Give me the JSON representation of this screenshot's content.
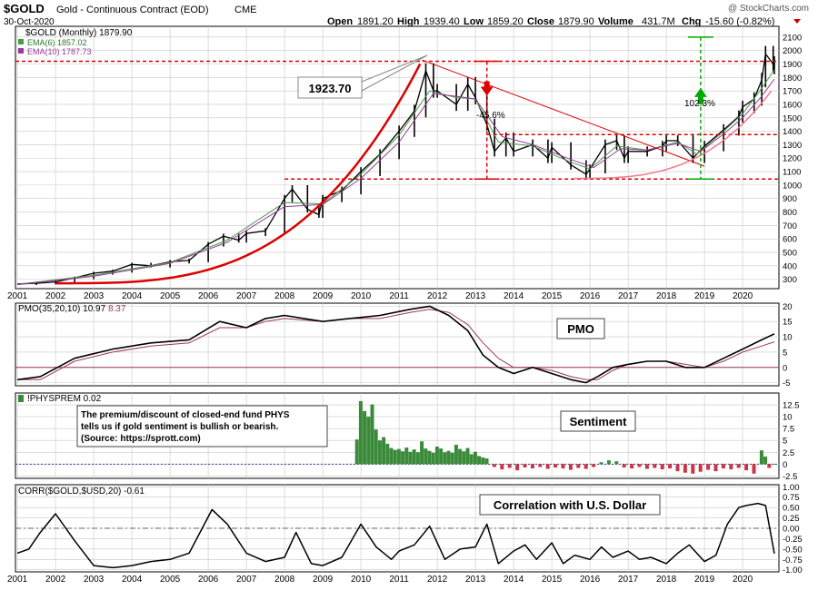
{
  "header": {
    "symbol": "$GOLD",
    "description": "Gold - Continuous Contract (EOD)",
    "exchange": "CME",
    "watermark": "@ StockCharts.com",
    "date": "30-Oct-2020",
    "ohlc": {
      "open_label": "Open",
      "open": "1891.20",
      "high_label": "High",
      "high": "1939.40",
      "low_label": "Low",
      "low": "1859.20",
      "close_label": "Close",
      "close": "1879.90",
      "volume_label": "Volume",
      "volume": "431.7M",
      "chg_label": "Chg",
      "chg": "-15.60 (-0.82%)"
    }
  },
  "colors": {
    "price_bar": "#000000",
    "ema6": "#4a9a4a",
    "ema10": "#9a3a9a",
    "red": "#dd0000",
    "green": "#00aa00",
    "positive_hist": "#3a8a3a",
    "negative_hist": "#cc3344",
    "grid": "#c8c8c8",
    "fill": "#ffffff"
  },
  "chart_data": [
    {
      "type": "line",
      "legend": [
        "$GOLD (Monthly) 1879.90",
        "EMA(6) 1857.02",
        "EMA(10) 1787.73"
      ],
      "ylim": [
        230,
        2180
      ],
      "yticks": [
        300,
        400,
        500,
        600,
        700,
        800,
        900,
        1000,
        1100,
        1200,
        1300,
        1400,
        1500,
        1600,
        1700,
        1800,
        1900,
        2000,
        2100
      ],
      "x_labels": [
        "2001",
        "2002",
        "2003",
        "2004",
        "2005",
        "2006",
        "2007",
        "2008",
        "2009",
        "2010",
        "2011",
        "2012",
        "2013",
        "2014",
        "2015",
        "2016",
        "2017",
        "2018",
        "2019",
        "2020"
      ],
      "series": [
        {
          "name": "$GOLD (Monthly)",
          "x": [
            2001.0,
            2001.5,
            2002.0,
            2002.5,
            2003.0,
            2003.5,
            2004.0,
            2004.5,
            2005.0,
            2005.5,
            2006.0,
            2006.4,
            2006.8,
            2007.0,
            2007.5,
            2008.0,
            2008.2,
            2008.6,
            2008.9,
            2009.0,
            2009.5,
            2010.0,
            2010.5,
            2011.0,
            2011.4,
            2011.7,
            2011.9,
            2012.0,
            2012.5,
            2012.8,
            2013.0,
            2013.3,
            2013.5,
            2013.8,
            2014.0,
            2014.5,
            2014.9,
            2015.0,
            2015.5,
            2015.9,
            2016.0,
            2016.4,
            2016.7,
            2016.9,
            2017.0,
            2017.5,
            2017.9,
            2018.0,
            2018.3,
            2018.7,
            2019.0,
            2019.5,
            2019.9,
            2020.0,
            2020.3,
            2020.5,
            2020.6,
            2020.8,
            2020.83
          ],
          "values": [
            265,
            270,
            280,
            310,
            345,
            360,
            410,
            400,
            430,
            440,
            560,
            620,
            590,
            640,
            660,
            900,
            970,
            820,
            780,
            900,
            960,
            1100,
            1230,
            1400,
            1550,
            1850,
            1700,
            1700,
            1600,
            1750,
            1650,
            1450,
            1250,
            1350,
            1250,
            1300,
            1200,
            1280,
            1150,
            1080,
            1120,
            1300,
            1330,
            1200,
            1250,
            1250,
            1290,
            1330,
            1330,
            1200,
            1290,
            1410,
            1510,
            1580,
            1640,
            1780,
            1975,
            1900,
            1879.9
          ]
        },
        {
          "name": "EMA(6)",
          "x": [
            2001.0,
            2003.0,
            2005.0,
            2006.5,
            2008.0,
            2009.0,
            2010.0,
            2011.0,
            2011.8,
            2012.5,
            2013.0,
            2013.6,
            2014.5,
            2015.5,
            2016.0,
            2016.7,
            2017.5,
            2018.3,
            2018.8,
            2019.5,
            2020.0,
            2020.5,
            2020.83
          ],
          "values": [
            262,
            330,
            425,
            590,
            870,
            860,
            1080,
            1370,
            1700,
            1650,
            1640,
            1320,
            1290,
            1170,
            1120,
            1290,
            1260,
            1320,
            1230,
            1400,
            1530,
            1720,
            1857.02
          ]
        },
        {
          "name": "EMA(10)",
          "x": [
            2001.0,
            2003.0,
            2005.0,
            2006.5,
            2008.0,
            2009.0,
            2010.0,
            2011.0,
            2011.9,
            2012.5,
            2013.0,
            2013.7,
            2014.5,
            2015.5,
            2016.1,
            2016.8,
            2017.5,
            2018.3,
            2018.9,
            2019.5,
            2020.0,
            2020.5,
            2020.83
          ],
          "values": [
            260,
            322,
            418,
            575,
            840,
            855,
            1050,
            1320,
            1680,
            1660,
            1640,
            1360,
            1300,
            1190,
            1130,
            1270,
            1260,
            1310,
            1250,
            1380,
            1500,
            1660,
            1787.73
          ]
        }
      ],
      "annotations": {
        "peak_value": "1923.70",
        "decline_pct": "-45.6%",
        "gain_pct": "102.3%",
        "resistance_level": 1920,
        "support_level": 1045,
        "mid_level": 1375
      }
    },
    {
      "type": "line",
      "legend": [
        "PMO(35,20,10) 10.97",
        "8.37"
      ],
      "label": "PMO",
      "ylim": [
        -6,
        21
      ],
      "yticks": [
        -5,
        0,
        5,
        10,
        15,
        20
      ],
      "series": [
        {
          "name": "PMO(35,20,10)",
          "x": [
            2001.0,
            2001.6,
            2002.5,
            2003.5,
            2004.5,
            2005.5,
            2006.3,
            2007.0,
            2007.5,
            2008.0,
            2009.0,
            2009.7,
            2010.5,
            2011.3,
            2011.8,
            2012.3,
            2012.8,
            2013.2,
            2013.6,
            2014.0,
            2014.5,
            2015.0,
            2015.5,
            2015.9,
            2016.2,
            2016.6,
            2017.0,
            2017.5,
            2018.0,
            2018.5,
            2019.0,
            2019.5,
            2020.0,
            2020.5,
            2020.83
          ],
          "values": [
            -4,
            -3,
            3,
            6,
            8,
            9,
            15,
            13,
            16,
            17,
            15,
            16,
            17,
            19,
            20,
            17,
            12,
            4,
            0,
            -2,
            0,
            -2,
            -4,
            -5,
            -3,
            0,
            1,
            2,
            2,
            0,
            0,
            3,
            6,
            9,
            10.97
          ]
        },
        {
          "name": "Signal",
          "x": [
            2001.0,
            2001.6,
            2002.5,
            2003.5,
            2004.5,
            2005.5,
            2006.3,
            2007.0,
            2007.5,
            2008.0,
            2009.0,
            2009.7,
            2010.5,
            2011.3,
            2011.8,
            2012.3,
            2012.8,
            2013.2,
            2013.6,
            2014.0,
            2014.5,
            2015.0,
            2015.5,
            2015.9,
            2016.2,
            2016.6,
            2017.0,
            2017.5,
            2018.0,
            2018.5,
            2019.0,
            2019.5,
            2020.0,
            2020.5,
            2020.83
          ],
          "values": [
            -4,
            -4,
            2,
            5,
            7,
            8,
            13,
            13,
            15,
            16,
            15,
            16,
            16,
            18,
            19,
            18,
            14,
            8,
            3,
            0,
            0,
            -1,
            -3,
            -4,
            -4,
            -1,
            1,
            2,
            2,
            1,
            0,
            2,
            5,
            7,
            8.37
          ]
        }
      ]
    },
    {
      "type": "bar",
      "legend": [
        "!PHYSPREM 0.02"
      ],
      "label": "Sentiment",
      "note": [
        "The premium/discount of closed-end fund PHYS",
        "tells us if gold sentiment is bullish or bearish.",
        "(Source: https://sprott.com)"
      ],
      "ylim": [
        -3,
        15
      ],
      "yticks": [
        -2.5,
        0,
        2.5,
        5,
        7.5,
        10,
        12.5
      ],
      "x": [
        2009.9,
        2010.0,
        2010.1,
        2010.2,
        2010.3,
        2010.4,
        2010.5,
        2010.6,
        2010.7,
        2010.8,
        2010.9,
        2011.0,
        2011.1,
        2011.2,
        2011.3,
        2011.4,
        2011.5,
        2011.6,
        2011.7,
        2011.8,
        2011.9,
        2012.0,
        2012.1,
        2012.2,
        2012.3,
        2012.4,
        2012.5,
        2012.6,
        2012.7,
        2012.8,
        2012.9,
        2013.0,
        2013.1,
        2013.2,
        2013.3,
        2013.5,
        2013.7,
        2013.9,
        2014.1,
        2014.3,
        2014.5,
        2014.7,
        2014.9,
        2015.1,
        2015.3,
        2015.5,
        2015.7,
        2015.9,
        2016.1,
        2016.3,
        2016.5,
        2016.7,
        2016.9,
        2017.1,
        2017.3,
        2017.5,
        2017.7,
        2017.9,
        2018.1,
        2018.3,
        2018.5,
        2018.7,
        2018.9,
        2019.1,
        2019.3,
        2019.5,
        2019.7,
        2019.9,
        2020.1,
        2020.3,
        2020.5,
        2020.6,
        2020.7,
        2020.83
      ],
      "values": [
        5.2,
        13.3,
        11.2,
        10.0,
        12.6,
        7.3,
        5.0,
        5.7,
        4.3,
        3.4,
        3.0,
        3.2,
        2.7,
        3.5,
        2.6,
        3.1,
        2.5,
        4.8,
        3.3,
        2.8,
        2.4,
        3.7,
        3.3,
        2.5,
        2.8,
        2.4,
        4.1,
        3.2,
        2.7,
        3.4,
        2.1,
        2.6,
        1.7,
        1.4,
        1.2,
        -0.6,
        -1.1,
        -0.8,
        -1.3,
        -0.7,
        -0.9,
        -0.6,
        -1.0,
        -0.7,
        -0.9,
        -1.2,
        -0.8,
        -1.0,
        -0.6,
        0.4,
        0.8,
        0.6,
        -0.7,
        -0.9,
        -0.6,
        -1.0,
        -0.8,
        -1.1,
        -0.9,
        -1.5,
        -1.8,
        -2.0,
        -1.6,
        -1.2,
        -1.5,
        -0.9,
        -1.1,
        -0.8,
        -1.3,
        -2.0,
        2.9,
        1.6,
        -0.8,
        0.02
      ]
    },
    {
      "type": "line",
      "legend": [
        "CORR($GOLD,$USD,20) -0.61"
      ],
      "label": "Correlation with U.S. Dollar",
      "ylim": [
        -1.05,
        1.05
      ],
      "yticks": [
        -1.0,
        -0.75,
        -0.5,
        -0.25,
        0,
        0.25,
        0.5,
        0.75,
        1.0
      ],
      "x_labels": [
        "2001",
        "2002",
        "2003",
        "2004",
        "2005",
        "2006",
        "2007",
        "2008",
        "2009",
        "2010",
        "2011",
        "2012",
        "2013",
        "2014",
        "2015",
        "2016",
        "2017",
        "2018",
        "2019",
        "2020"
      ],
      "series": [
        {
          "name": "CORR($GOLD,$USD,20)",
          "x": [
            2001.0,
            2001.3,
            2001.6,
            2002.0,
            2002.5,
            2003.0,
            2003.5,
            2004.0,
            2004.5,
            2005.0,
            2005.5,
            2006.1,
            2006.5,
            2007.0,
            2007.5,
            2008.0,
            2008.3,
            2008.7,
            2009.0,
            2009.5,
            2010.0,
            2010.4,
            2010.8,
            2011.0,
            2011.4,
            2011.8,
            2012.2,
            2012.6,
            2013.0,
            2013.3,
            2013.6,
            2014.0,
            2014.3,
            2014.6,
            2015.0,
            2015.3,
            2015.6,
            2016.0,
            2016.3,
            2016.6,
            2017.0,
            2017.3,
            2017.6,
            2018.0,
            2018.3,
            2018.6,
            2019.0,
            2019.3,
            2019.6,
            2019.9,
            2020.1,
            2020.4,
            2020.6,
            2020.83
          ],
          "values": [
            -0.6,
            -0.5,
            -0.1,
            0.35,
            -0.3,
            -0.9,
            -0.95,
            -0.9,
            -0.8,
            -0.75,
            -0.6,
            0.45,
            0.1,
            -0.6,
            -0.8,
            -0.7,
            -0.1,
            -0.85,
            -0.9,
            -0.7,
            0.1,
            -0.45,
            -0.75,
            -0.55,
            -0.4,
            0.05,
            -0.75,
            -0.5,
            -0.45,
            0.1,
            -0.85,
            -0.55,
            -0.4,
            -0.75,
            -0.35,
            -0.85,
            -0.65,
            -0.75,
            -0.45,
            -0.7,
            -0.55,
            -0.75,
            -0.7,
            -0.85,
            -0.6,
            -0.4,
            -0.8,
            -0.65,
            0.1,
            0.5,
            0.55,
            0.6,
            0.55,
            -0.61
          ]
        }
      ]
    }
  ]
}
